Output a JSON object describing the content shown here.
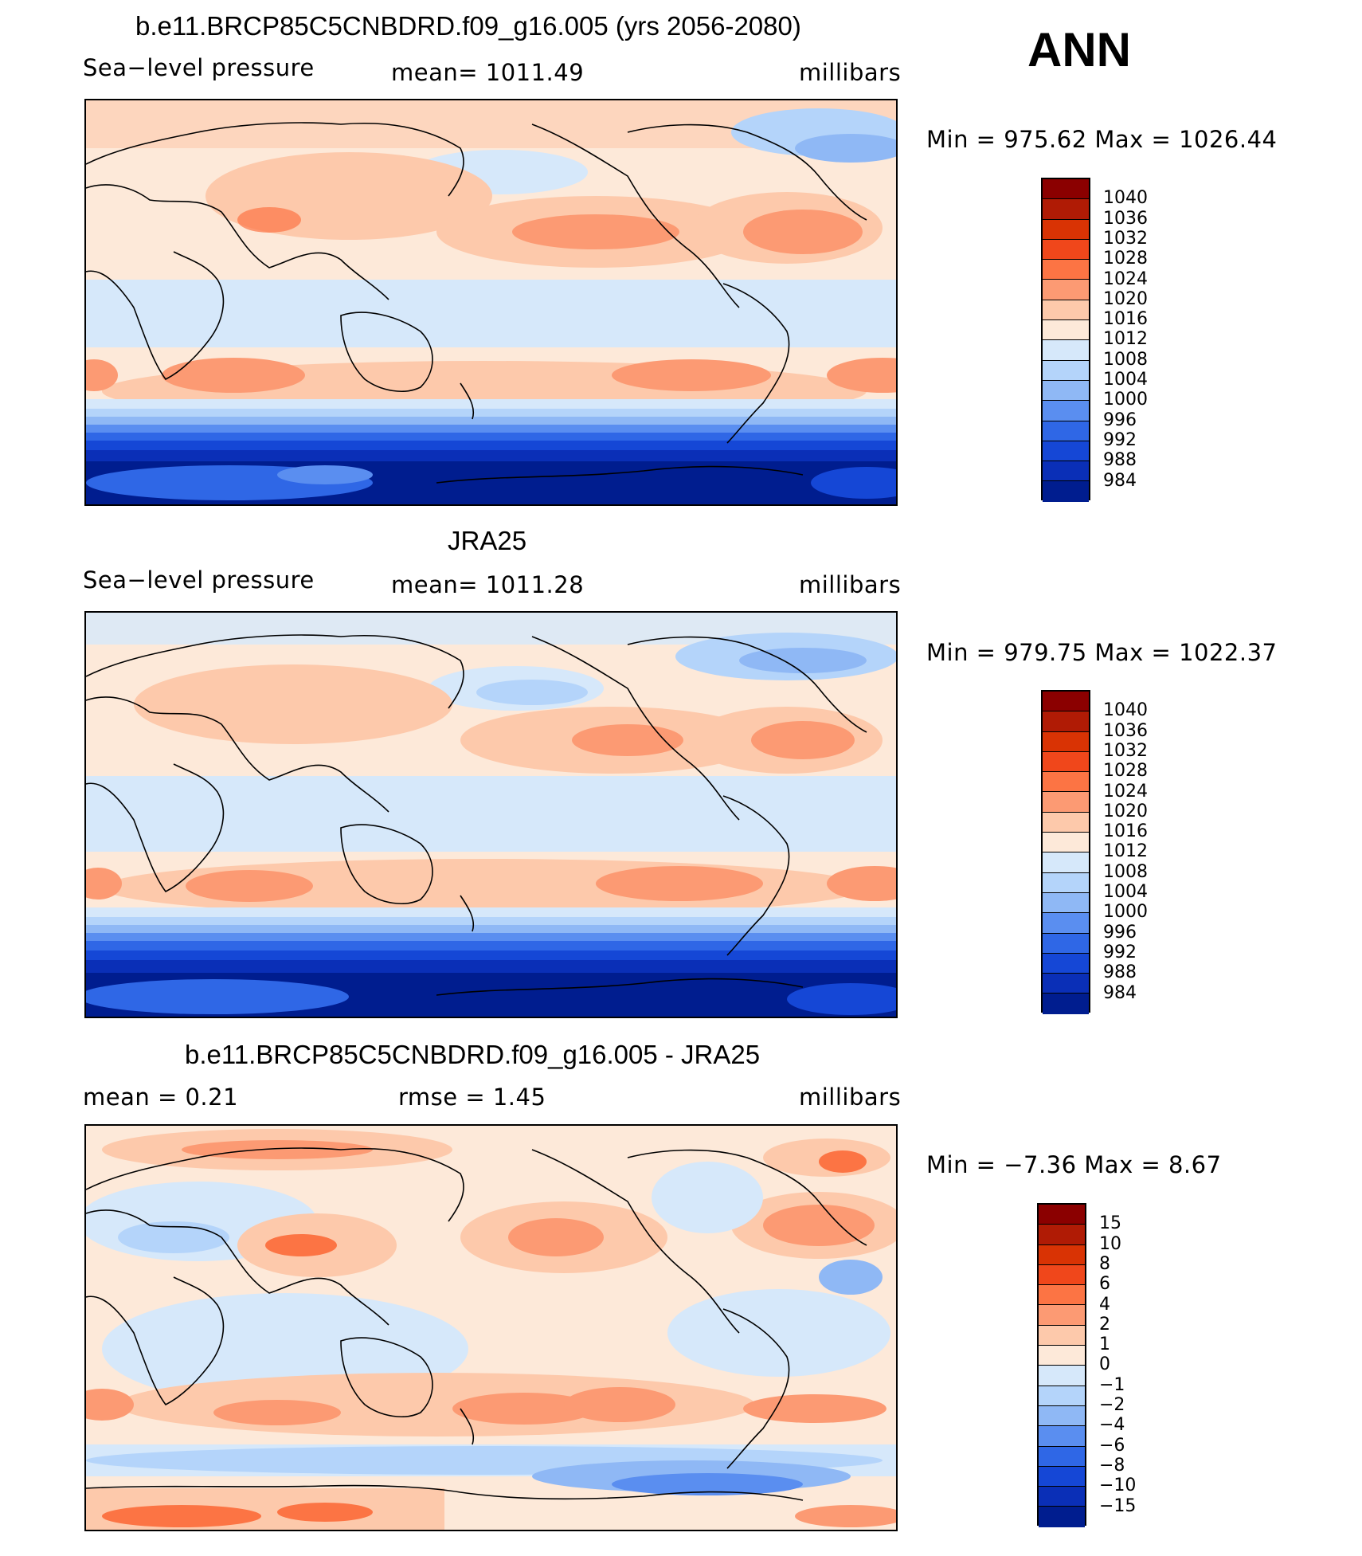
{
  "season": "ANN",
  "panels": [
    {
      "title": "b.e11.BRCP85C5CNBDRD.f09_g16.005 (yrs 2056-2080)",
      "left_label": "Sea−level pressure",
      "center_label": "mean=  1011.49",
      "units": "millibars",
      "minmax": "Min  =  975.62  Max  =  1026.44",
      "scale": "abs"
    },
    {
      "title": "JRA25",
      "left_label": "Sea−level pressure",
      "center_label": "mean=  1011.28",
      "units": "millibars",
      "minmax": "Min  =  979.75  Max  =  1022.37",
      "scale": "abs"
    },
    {
      "title": "b.e11.BRCP85C5CNBDRD.f09_g16.005 - JRA25",
      "left_label": "mean  =     0.21",
      "center_label": "rmse  =     1.45",
      "units": "millibars",
      "minmax": "Min  =    −7.36  Max  =     8.67",
      "scale": "diff"
    }
  ],
  "colorbars": {
    "abs": {
      "colors": [
        "#8b0000",
        "#b01b05",
        "#d93304",
        "#f0471b",
        "#fc7444",
        "#fc9a73",
        "#fdc9ab",
        "#fde9d9",
        "#d6e8fa",
        "#b4d4fa",
        "#8fb8f5",
        "#5a8ef0",
        "#2f67e6",
        "#1547d6",
        "#0a2fb7",
        "#001d8f"
      ],
      "labels": [
        "1040",
        "1036",
        "1032",
        "1028",
        "1024",
        "1020",
        "1016",
        "1012",
        "1008",
        "1004",
        "1000",
        "996",
        "992",
        "988",
        "984"
      ]
    },
    "diff": {
      "colors": [
        "#8b0000",
        "#b01b05",
        "#d93304",
        "#f0471b",
        "#fc7444",
        "#fc9a73",
        "#fdc9ab",
        "#fde9d9",
        "#d6e8fa",
        "#b4d4fa",
        "#8fb8f5",
        "#5a8ef0",
        "#2f67e6",
        "#1547d6",
        "#0a2fb7",
        "#001d8f"
      ],
      "labels": [
        "15",
        "10",
        "8",
        "6",
        "4",
        "2",
        "1",
        "0",
        "−1",
        "−2",
        "−4",
        "−6",
        "−8",
        "−10",
        "−15"
      ]
    }
  }
}
